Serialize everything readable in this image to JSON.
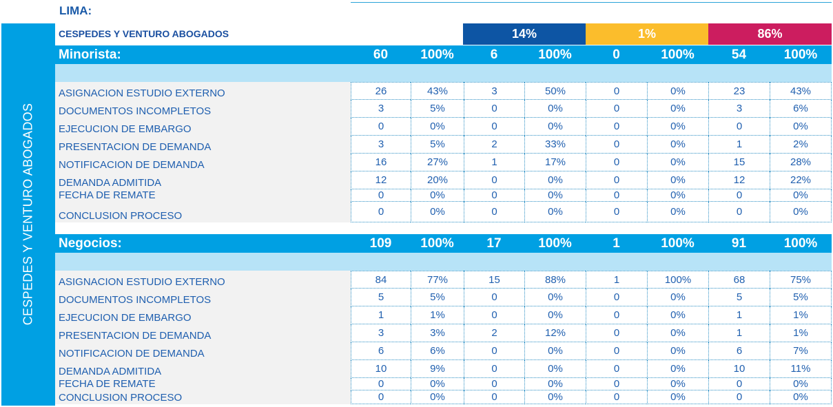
{
  "city": "LIMA:",
  "sidebar_label": "CESPEDES Y VENTURO ABOGADOS",
  "firm_name": "CESPEDES Y VENTURO ABOGADOS",
  "shares": [
    {
      "label": "14%",
      "color": "#0d55a4"
    },
    {
      "label": "1%",
      "color": "#fbbd2c"
    },
    {
      "label": "86%",
      "color": "#cc1d5f"
    }
  ],
  "sections": [
    {
      "title": "Minorista:",
      "totals": [
        "60",
        "100%",
        "6",
        "100%",
        "0",
        "100%",
        "54",
        "100%"
      ],
      "rows": [
        {
          "label": "ASIGNACION ESTUDIO EXTERNO",
          "values": [
            "26",
            "43%",
            "3",
            "50%",
            "0",
            "0%",
            "23",
            "43%"
          ]
        },
        {
          "label": "DOCUMENTOS INCOMPLETOS",
          "values": [
            "3",
            "5%",
            "0",
            "0%",
            "0",
            "0%",
            "3",
            "6%"
          ]
        },
        {
          "label": "EJECUCION DE EMBARGO",
          "values": [
            "0",
            "0%",
            "0",
            "0%",
            "0",
            "0%",
            "0",
            "0%"
          ]
        },
        {
          "label": "PRESENTACION DE DEMANDA",
          "values": [
            "3",
            "5%",
            "2",
            "33%",
            "0",
            "0%",
            "1",
            "2%"
          ]
        },
        {
          "label": "NOTIFICACION DE DEMANDA",
          "values": [
            "16",
            "27%",
            "1",
            "17%",
            "0",
            "0%",
            "15",
            "28%"
          ]
        },
        {
          "label": "DEMANDA ADMITIDA",
          "values": [
            "12",
            "20%",
            "0",
            "0%",
            "0",
            "0%",
            "12",
            "22%"
          ]
        },
        {
          "label": "FECHA DE REMATE",
          "values": [
            "0",
            "0%",
            "0",
            "0%",
            "0",
            "0%",
            "0",
            "0%"
          ]
        },
        {
          "label": "CONCLUSION PROCESO",
          "values": [
            "0",
            "0%",
            "0",
            "0%",
            "0",
            "0%",
            "0",
            "0%"
          ]
        }
      ]
    },
    {
      "title": "Negocios:",
      "totals": [
        "109",
        "100%",
        "17",
        "100%",
        "1",
        "100%",
        "91",
        "100%"
      ],
      "rows": [
        {
          "label": "ASIGNACION ESTUDIO EXTERNO",
          "values": [
            "84",
            "77%",
            "15",
            "88%",
            "1",
            "100%",
            "68",
            "75%"
          ]
        },
        {
          "label": "DOCUMENTOS INCOMPLETOS",
          "values": [
            "5",
            "5%",
            "0",
            "0%",
            "0",
            "0%",
            "5",
            "5%"
          ]
        },
        {
          "label": "EJECUCION DE EMBARGO",
          "values": [
            "1",
            "1%",
            "0",
            "0%",
            "0",
            "0%",
            "1",
            "1%"
          ]
        },
        {
          "label": "PRESENTACION DE DEMANDA",
          "values": [
            "3",
            "3%",
            "2",
            "12%",
            "0",
            "0%",
            "1",
            "1%"
          ]
        },
        {
          "label": "NOTIFICACION DE DEMANDA",
          "values": [
            "6",
            "6%",
            "0",
            "0%",
            "0",
            "0%",
            "6",
            "7%"
          ]
        },
        {
          "label": "DEMANDA ADMITIDA",
          "values": [
            "10",
            "9%",
            "0",
            "0%",
            "0",
            "0%",
            "10",
            "11%"
          ]
        },
        {
          "label": "FECHA DE REMATE",
          "values": [
            "0",
            "0%",
            "0",
            "0%",
            "0",
            "0%",
            "0",
            "0%"
          ]
        },
        {
          "label": "CONCLUSION PROCESO",
          "values": [
            "0",
            "0%",
            "0",
            "0%",
            "0",
            "0%",
            "0",
            "0%"
          ]
        }
      ]
    }
  ]
}
